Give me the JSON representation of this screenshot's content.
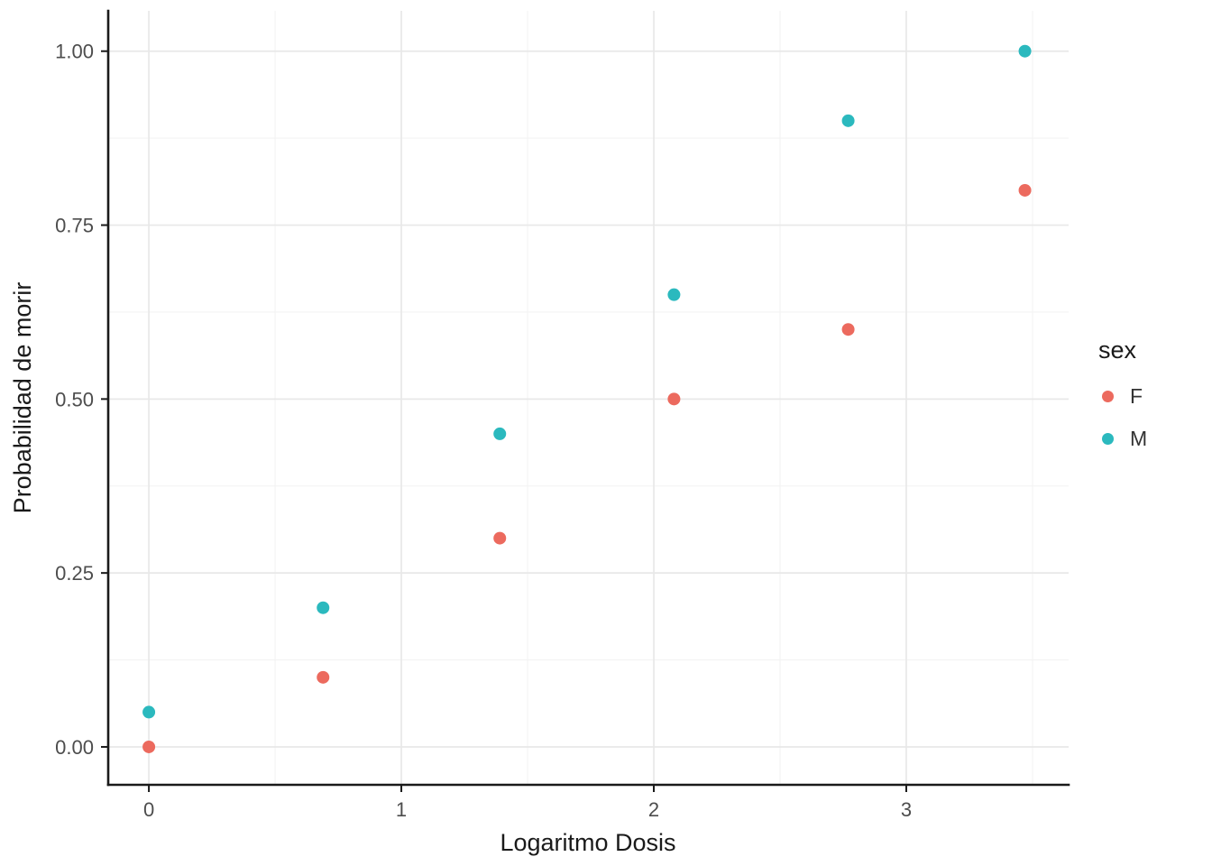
{
  "chart_data": {
    "type": "scatter",
    "title": "",
    "xlabel": "Logaritmo Dosis",
    "ylabel": "Probabilidad de morir",
    "legend_title": "sex",
    "legend_position": "right",
    "grid": true,
    "background": "#ffffff",
    "grid_major_color": "#e8e8e8",
    "grid_minor_color": "#f3f3f3",
    "axis_color": "#1a1a1a",
    "point_radius": 7,
    "x": [
      0,
      0.69,
      1.39,
      2.08,
      2.77,
      3.47
    ],
    "series": [
      {
        "name": "F",
        "color": "#ec6a5e",
        "values": [
          0.0,
          0.1,
          0.3,
          0.5,
          0.6,
          0.8
        ]
      },
      {
        "name": "M",
        "color": "#2bb9be",
        "values": [
          0.05,
          0.2,
          0.45,
          0.65,
          0.9,
          1.0
        ]
      }
    ],
    "x_ticks": [
      0,
      1,
      2,
      3
    ],
    "x_tick_labels": [
      "0",
      "1",
      "2",
      "3"
    ],
    "x_minor": [
      0.5,
      1.5,
      2.5,
      3.5
    ],
    "y_ticks": [
      0,
      0.25,
      0.5,
      0.75,
      1
    ],
    "y_tick_labels": [
      "0.00",
      "0.25",
      "0.50",
      "0.75",
      "1.00"
    ],
    "y_minor": [
      0.125,
      0.375,
      0.625,
      0.875
    ],
    "x_domain": [
      -0.161,
      3.643
    ],
    "y_domain": [
      -0.0545,
      1.058
    ]
  }
}
